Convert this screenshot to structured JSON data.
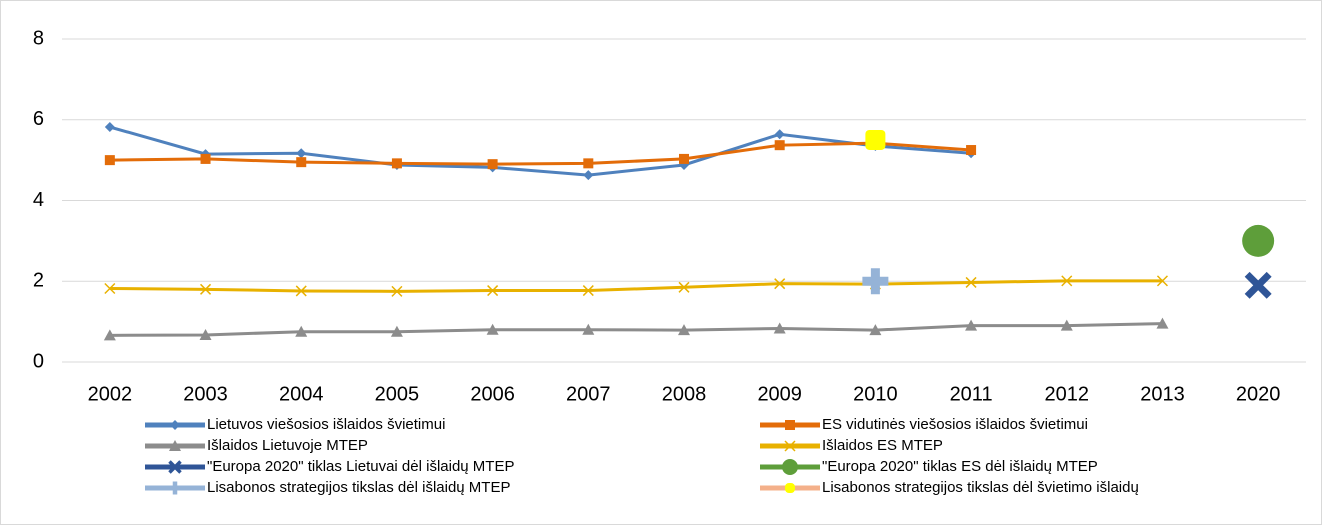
{
  "chart_data": {
    "type": "line",
    "categories": [
      "2002",
      "2003",
      "2004",
      "2005",
      "2006",
      "2007",
      "2008",
      "2009",
      "2010",
      "2011",
      "2012",
      "2013",
      "2020"
    ],
    "ylim": [
      0,
      8
    ],
    "yticks": [
      0,
      2,
      4,
      6,
      8
    ],
    "grid": true,
    "legend": "bottom",
    "series": [
      {
        "name": "Lietuvos viešosios išlaidos švietimui",
        "color": "#4f81bd",
        "marker": "diamond",
        "values": [
          5.82,
          5.15,
          5.17,
          4.88,
          4.82,
          4.63,
          4.88,
          5.64,
          5.35,
          5.17,
          null,
          null,
          null
        ]
      },
      {
        "name": "ES vidutinės viešosios išlaidos švietimui",
        "color": "#e36c09",
        "marker": "square",
        "values": [
          5.0,
          5.03,
          4.95,
          4.92,
          4.9,
          4.92,
          5.03,
          5.37,
          5.42,
          5.25,
          null,
          null,
          null
        ]
      },
      {
        "name": "Išlaidos Lietuvoje MTEP",
        "color": "#8c8c8c",
        "marker": "triangle",
        "values": [
          0.66,
          0.67,
          0.75,
          0.75,
          0.8,
          0.8,
          0.79,
          0.83,
          0.79,
          0.9,
          0.9,
          0.95,
          null
        ]
      },
      {
        "name": "Išlaidos ES MTEP",
        "color": "#e8b100",
        "marker": "x",
        "values": [
          1.82,
          1.8,
          1.76,
          1.75,
          1.77,
          1.77,
          1.85,
          1.94,
          1.93,
          1.97,
          2.01,
          2.01,
          null
        ]
      },
      {
        "name": "\"Europa 2020\" tiklas Lietuvai dėl išlaidų MTEP",
        "color": "#2f5597",
        "marker": "bigx",
        "values": [
          null,
          null,
          null,
          null,
          null,
          null,
          null,
          null,
          null,
          null,
          null,
          null,
          1.9
        ]
      },
      {
        "name": "\"Europa 2020\" tiklas ES dėl išlaidų MTEP",
        "color": "#5e9e3a",
        "marker": "circle",
        "values": [
          null,
          null,
          null,
          null,
          null,
          null,
          null,
          null,
          null,
          null,
          null,
          null,
          3
        ]
      },
      {
        "name": "Lisabonos strategijos tikslas dėl išlaidų MTEP",
        "color": "#95b3d7",
        "marker": "plus",
        "values": [
          null,
          null,
          null,
          null,
          null,
          null,
          null,
          null,
          2,
          null,
          null,
          null,
          null
        ]
      },
      {
        "name": "Lisabonos strategijos tikslas dėl švietimo išlaidų",
        "color": "#f4b08a",
        "marker_color": "#ffff00",
        "marker": "square",
        "values": [
          null,
          null,
          null,
          null,
          null,
          null,
          null,
          null,
          5.5,
          null,
          null,
          null,
          null
        ]
      }
    ]
  }
}
